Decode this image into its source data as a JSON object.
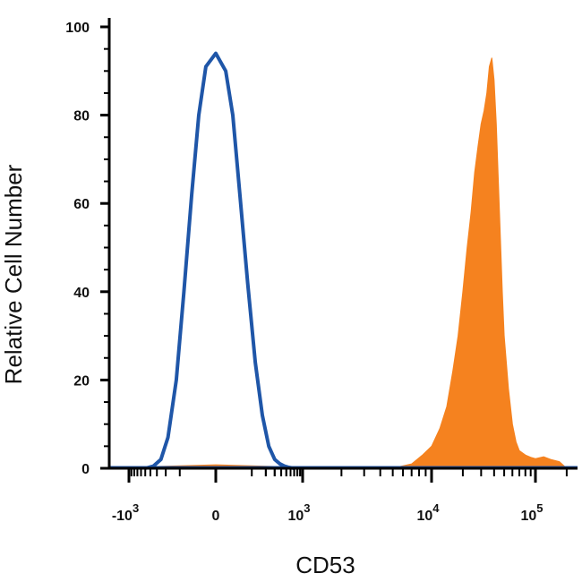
{
  "chart_data": {
    "type": "area",
    "title": "",
    "xlabel": "CD53",
    "ylabel": "Relative Cell Number",
    "x_scale": "biexponential",
    "xlim": [
      -2000,
      200000
    ],
    "ylim": [
      0,
      100
    ],
    "y_ticks": [
      {
        "value": 0,
        "label": "0"
      },
      {
        "value": 20,
        "label": "20"
      },
      {
        "value": 40,
        "label": "40"
      },
      {
        "value": 60,
        "label": "60"
      },
      {
        "value": 80,
        "label": "80"
      },
      {
        "value": 100,
        "label": "100"
      }
    ],
    "x_ticks": [
      {
        "value": -1000,
        "base": "-10",
        "exp": "3"
      },
      {
        "value": 0,
        "base": "0",
        "exp": ""
      },
      {
        "value": 1000,
        "base": "10",
        "exp": "3"
      },
      {
        "value": 10000,
        "base": "10",
        "exp": "4"
      },
      {
        "value": 100000,
        "base": "10",
        "exp": "5"
      }
    ],
    "grid": false,
    "legend": "none",
    "series": [
      {
        "style": "outline",
        "color": "#1f56a8",
        "x": [
          -500,
          -350,
          -250,
          -180,
          -120,
          -80,
          -50,
          -30,
          -15,
          0,
          15,
          30,
          50,
          80,
          120,
          170,
          230,
          300,
          380,
          460,
          560,
          700
        ],
        "y": [
          0,
          0.5,
          2,
          7,
          20,
          40,
          62,
          80,
          91,
          94,
          90,
          80,
          62,
          42,
          24,
          12,
          5,
          2,
          1,
          0.5,
          0.2,
          0
        ]
      },
      {
        "style": "filled",
        "color": "#f5821f",
        "x": [
          -500,
          -300,
          0,
          300,
          600,
          3000,
          5500,
          7000,
          8500,
          10000,
          12000,
          14000,
          16000,
          18000,
          20000,
          22000,
          24000,
          26000,
          28000,
          30000,
          32000,
          34000,
          36000,
          38000,
          40000,
          42000,
          44000,
          46000,
          48000,
          50000,
          55000,
          60000,
          65000,
          70000,
          80000,
          90000,
          100000,
          120000,
          140000,
          170000,
          200000
        ],
        "y": [
          0,
          0.4,
          0.8,
          0.4,
          0,
          0,
          0.3,
          1,
          3,
          5,
          9,
          14,
          22,
          30,
          40,
          50,
          58,
          67,
          73,
          78,
          81,
          85,
          91,
          93,
          88,
          78,
          65,
          52,
          40,
          30,
          18,
          10,
          6,
          4,
          3,
          2.5,
          2.2,
          2.6,
          2,
          1.5,
          0
        ]
      }
    ]
  }
}
